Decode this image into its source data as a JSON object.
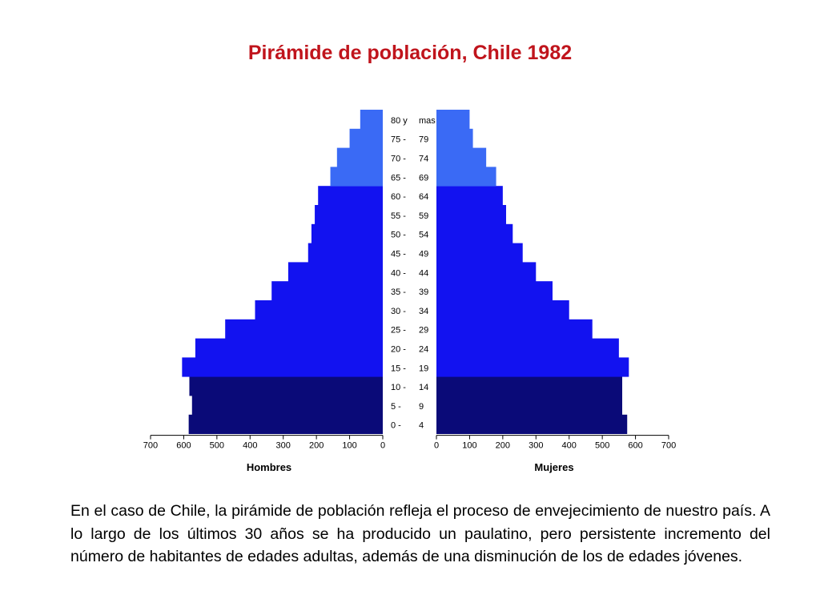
{
  "title": "Pirámide de población, Chile 1982",
  "colors": {
    "title": "#c0141c",
    "young": "#0a0a78",
    "adult": "#1212f0",
    "elderly": "#3a6af5"
  },
  "chart_data": {
    "type": "bar",
    "orientation": "horizontal-population-pyramid",
    "categories_left": [
      "0 -",
      "5 -",
      "10 -",
      "15 -",
      "20 -",
      "25 -",
      "30 -",
      "35 -",
      "40 -",
      "45 -",
      "50 -",
      "55 -",
      "60 -",
      "65 -",
      "70 -",
      "75 -",
      "80 y"
    ],
    "categories_right": [
      "4",
      "9",
      "14",
      "19",
      "24",
      "29",
      "34",
      "39",
      "44",
      "49",
      "54",
      "59",
      "64",
      "69",
      "74",
      "79",
      "mas"
    ],
    "groups": [
      "young",
      "young",
      "young",
      "adult",
      "adult",
      "adult",
      "adult",
      "adult",
      "adult",
      "adult",
      "adult",
      "adult",
      "adult",
      "elderly",
      "elderly",
      "elderly",
      "elderly"
    ],
    "series": [
      {
        "name": "Hombres",
        "values": [
          585,
          575,
          583,
          605,
          565,
          475,
          385,
          335,
          285,
          225,
          215,
          205,
          195,
          158,
          138,
          100,
          68
        ]
      },
      {
        "name": "Mujeres",
        "values": [
          575,
          560,
          560,
          580,
          550,
          470,
          400,
          350,
          300,
          260,
          230,
          210,
          200,
          180,
          150,
          110,
          100
        ]
      }
    ],
    "xlabel_left": "Hombres",
    "xlabel_right": "Mujeres",
    "x_ticks": [
      0,
      100,
      200,
      300,
      400,
      500,
      600,
      700
    ],
    "xlim": [
      0,
      700
    ],
    "grid": false,
    "legend": "none"
  },
  "body_text": "En el caso de Chile, la pirámide de población refleja el proceso de envejecimiento de nuestro país. A lo largo de los últimos 30 años se ha producido un paulatino, pero persistente incremento del número de habitantes de edades adultas, además de una disminución de los de edades jóvenes."
}
